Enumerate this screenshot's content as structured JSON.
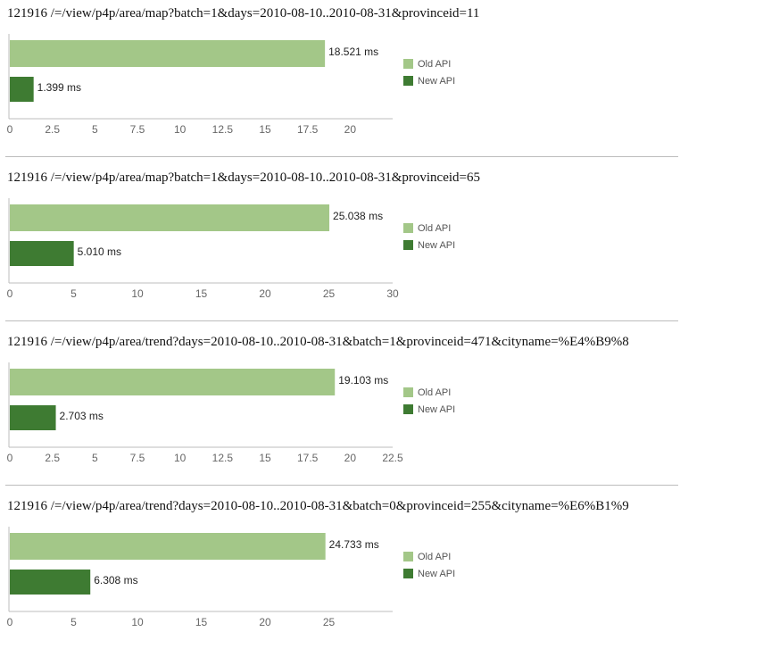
{
  "colors": {
    "old": "#a3c788",
    "new": "#3e7b32",
    "axis": "#bdbdbd",
    "tick_text": "#666666"
  },
  "chart_data": [
    {
      "type": "bar",
      "orientation": "horizontal",
      "title": "121916 /=/view/p4p/area/map?batch=1&days=2010-08-10..2010-08-31&provinceid=11",
      "legend_position": "right",
      "grid": false,
      "xlim": [
        0,
        22.5
      ],
      "ticks": [
        "0",
        "2.5",
        "5",
        "7.5",
        "10",
        "12.5",
        "15",
        "17.5",
        "20"
      ],
      "series": [
        {
          "name": "Old API",
          "value": 18.521,
          "label": "18.521 ms"
        },
        {
          "name": "New API",
          "value": 1.399,
          "label": "1.399 ms"
        }
      ]
    },
    {
      "type": "bar",
      "orientation": "horizontal",
      "title": "121916 /=/view/p4p/area/map?batch=1&days=2010-08-10..2010-08-31&provinceid=65",
      "legend_position": "right",
      "grid": false,
      "xlim": [
        0,
        30
      ],
      "ticks": [
        "0",
        "5",
        "10",
        "15",
        "20",
        "25",
        "30"
      ],
      "series": [
        {
          "name": "Old API",
          "value": 25.038,
          "label": "25.038 ms"
        },
        {
          "name": "New API",
          "value": 5.01,
          "label": "5.010 ms"
        }
      ]
    },
    {
      "type": "bar",
      "orientation": "horizontal",
      "title": "121916 /=/view/p4p/area/trend?days=2010-08-10..2010-08-31&batch=1&provinceid=471&cityname=%E4%B9%8",
      "legend_position": "right",
      "grid": false,
      "xlim": [
        0,
        22.5
      ],
      "ticks": [
        "0",
        "2.5",
        "5",
        "7.5",
        "10",
        "12.5",
        "15",
        "17.5",
        "20",
        "22.5"
      ],
      "series": [
        {
          "name": "Old API",
          "value": 19.103,
          "label": "19.103 ms"
        },
        {
          "name": "New API",
          "value": 2.703,
          "label": "2.703 ms"
        }
      ]
    },
    {
      "type": "bar",
      "orientation": "horizontal",
      "title": "121916 /=/view/p4p/area/trend?days=2010-08-10..2010-08-31&batch=0&provinceid=255&cityname=%E6%B1%9",
      "legend_position": "right",
      "grid": false,
      "xlim": [
        0,
        30
      ],
      "ticks": [
        "0",
        "5",
        "10",
        "15",
        "20",
        "25"
      ],
      "series": [
        {
          "name": "Old API",
          "value": 24.733,
          "label": "24.733 ms"
        },
        {
          "name": "New API",
          "value": 6.308,
          "label": "6.308 ms"
        }
      ]
    }
  ]
}
